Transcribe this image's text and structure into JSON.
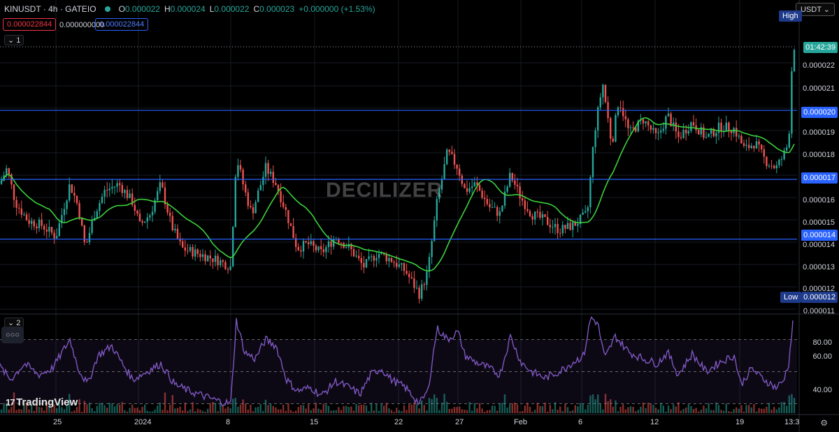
{
  "header": {
    "symbol": "KINUSDT · 4h · GATEIO",
    "o_label": "O",
    "o_value": "0.000022",
    "h_label": "H",
    "h_value": "0.000024",
    "l_label": "L",
    "l_value": "0.000022",
    "c_label": "C",
    "c_value": "0.000023",
    "change": "+0.000000 (+1.53%)",
    "sell_price": "0.000022844",
    "spread": "0.000000000",
    "buy_price": "0.000022844",
    "pane1_toggle": "1",
    "pane2_toggle": "2",
    "more_button": "○○○"
  },
  "watermark": "DECILIZER",
  "brand": "TradingView",
  "currency": "USDT",
  "price_axis": {
    "ticks": [
      "0.000022",
      "0.000021",
      "0.000019",
      "0.000018",
      "0.000016",
      "0.000015",
      "0.000014",
      "0.000013",
      "0.000012",
      "0.000011"
    ],
    "high_label": "High",
    "low_label": "Low",
    "low_value": "0.000012",
    "countdown": "01:42:39",
    "line_20": "0.000020",
    "line_17": "0.000017",
    "line_14": "0.000014"
  },
  "rsi_axis": {
    "ticks": [
      "80.00",
      "60.00",
      "40.00"
    ]
  },
  "time_axis": {
    "ticks": [
      "25",
      "2024",
      "8",
      "15",
      "22",
      "27",
      "Feb",
      "6",
      "12",
      "19",
      "13:3"
    ]
  },
  "colors": {
    "up": "#26a69a",
    "down": "#ef5350",
    "ma": "#3cd13c",
    "rsi": "#7e57c2",
    "hline": "#2962ff",
    "bg": "#000000"
  },
  "chart_data": {
    "type": "candlestick",
    "y_range": [
      1.12e-05,
      2.45e-05
    ],
    "hlines": [
      2e-05,
      1.7e-05,
      1.44e-05
    ],
    "current_price": 2.32e-05,
    "ma_period_bars": 20,
    "rsi_range": [
      25,
      85
    ],
    "rsi_bands": [
      70,
      50,
      30
    ],
    "x_ticks": [
      "25",
      "2024",
      "8",
      "15",
      "22",
      "27",
      "Feb",
      "6",
      "12",
      "19",
      "13:3"
    ],
    "close_path": [
      [
        0,
        1.68e-05
      ],
      [
        10,
        1.75e-05
      ],
      [
        22,
        1.6e-05
      ],
      [
        40,
        1.52e-05
      ],
      [
        60,
        1.5e-05
      ],
      [
        80,
        1.45e-05
      ],
      [
        100,
        1.68e-05
      ],
      [
        112,
        1.58e-05
      ],
      [
        122,
        1.4e-05
      ],
      [
        135,
        1.55e-05
      ],
      [
        150,
        1.65e-05
      ],
      [
        170,
        1.68e-05
      ],
      [
        190,
        1.6e-05
      ],
      [
        200,
        1.5e-05
      ],
      [
        215,
        1.55e-05
      ],
      [
        230,
        1.68e-05
      ],
      [
        245,
        1.5e-05
      ],
      [
        260,
        1.4e-05
      ],
      [
        290,
        1.37e-05
      ],
      [
        310,
        1.35e-05
      ],
      [
        330,
        1.32e-05
      ],
      [
        338,
        1.8e-05
      ],
      [
        350,
        1.65e-05
      ],
      [
        360,
        1.55e-05
      ],
      [
        380,
        1.75e-05
      ],
      [
        395,
        1.68e-05
      ],
      [
        410,
        1.55e-05
      ],
      [
        425,
        1.4e-05
      ],
      [
        440,
        1.42e-05
      ],
      [
        460,
        1.38e-05
      ],
      [
        480,
        1.45e-05
      ],
      [
        500,
        1.4e-05
      ],
      [
        520,
        1.32e-05
      ],
      [
        540,
        1.38e-05
      ],
      [
        560,
        1.35e-05
      ],
      [
        580,
        1.3e-05
      ],
      [
        600,
        1.2e-05
      ],
      [
        612,
        1.3e-05
      ],
      [
        625,
        1.6e-05
      ],
      [
        640,
        1.82e-05
      ],
      [
        655,
        1.75e-05
      ],
      [
        665,
        1.65e-05
      ],
      [
        680,
        1.68e-05
      ],
      [
        700,
        1.58e-05
      ],
      [
        715,
        1.55e-05
      ],
      [
        730,
        1.72e-05
      ],
      [
        745,
        1.62e-05
      ],
      [
        760,
        1.55e-05
      ],
      [
        780,
        1.52e-05
      ],
      [
        800,
        1.48e-05
      ],
      [
        820,
        1.5e-05
      ],
      [
        840,
        1.55e-05
      ],
      [
        850,
        1.9e-05
      ],
      [
        862,
        2.12e-05
      ],
      [
        875,
        1.85e-05
      ],
      [
        885,
        2.05e-05
      ],
      [
        900,
        1.9e-05
      ],
      [
        920,
        1.96e-05
      ],
      [
        940,
        1.88e-05
      ],
      [
        955,
        1.98e-05
      ],
      [
        970,
        1.88e-05
      ],
      [
        990,
        1.95e-05
      ],
      [
        1010,
        1.88e-05
      ],
      [
        1030,
        1.93e-05
      ],
      [
        1050,
        1.92e-05
      ],
      [
        1065,
        1.83e-05
      ],
      [
        1080,
        1.86e-05
      ],
      [
        1095,
        1.78e-05
      ],
      [
        1110,
        1.75e-05
      ],
      [
        1120,
        1.8e-05
      ],
      [
        1128,
        1.86e-05
      ],
      [
        1133,
        2.22e-05
      ],
      [
        1138,
        2.32e-05
      ]
    ],
    "rsi_path": [
      [
        0,
        53
      ],
      [
        15,
        45
      ],
      [
        35,
        55
      ],
      [
        55,
        48
      ],
      [
        75,
        52
      ],
      [
        100,
        70
      ],
      [
        112,
        52
      ],
      [
        125,
        42
      ],
      [
        140,
        60
      ],
      [
        160,
        66
      ],
      [
        175,
        55
      ],
      [
        190,
        45
      ],
      [
        210,
        50
      ],
      [
        230,
        55
      ],
      [
        250,
        42
      ],
      [
        270,
        38
      ],
      [
        290,
        35
      ],
      [
        310,
        32
      ],
      [
        330,
        30
      ],
      [
        338,
        82
      ],
      [
        350,
        62
      ],
      [
        365,
        58
      ],
      [
        380,
        70
      ],
      [
        395,
        66
      ],
      [
        410,
        45
      ],
      [
        425,
        38
      ],
      [
        445,
        40
      ],
      [
        460,
        35
      ],
      [
        480,
        44
      ],
      [
        500,
        40
      ],
      [
        515,
        36
      ],
      [
        530,
        48
      ],
      [
        545,
        52
      ],
      [
        560,
        45
      ],
      [
        580,
        40
      ],
      [
        600,
        30
      ],
      [
        612,
        38
      ],
      [
        625,
        77
      ],
      [
        640,
        70
      ],
      [
        655,
        75
      ],
      [
        665,
        60
      ],
      [
        680,
        56
      ],
      [
        700,
        52
      ],
      [
        715,
        48
      ],
      [
        730,
        72
      ],
      [
        745,
        56
      ],
      [
        760,
        50
      ],
      [
        780,
        46
      ],
      [
        800,
        50
      ],
      [
        820,
        56
      ],
      [
        835,
        60
      ],
      [
        845,
        84
      ],
      [
        855,
        80
      ],
      [
        865,
        58
      ],
      [
        880,
        72
      ],
      [
        900,
        62
      ],
      [
        920,
        58
      ],
      [
        940,
        55
      ],
      [
        955,
        62
      ],
      [
        970,
        48
      ],
      [
        990,
        61
      ],
      [
        1010,
        50
      ],
      [
        1030,
        56
      ],
      [
        1050,
        60
      ],
      [
        1060,
        42
      ],
      [
        1075,
        52
      ],
      [
        1090,
        46
      ],
      [
        1110,
        40
      ],
      [
        1120,
        44
      ],
      [
        1128,
        55
      ],
      [
        1134,
        80
      ]
    ]
  }
}
